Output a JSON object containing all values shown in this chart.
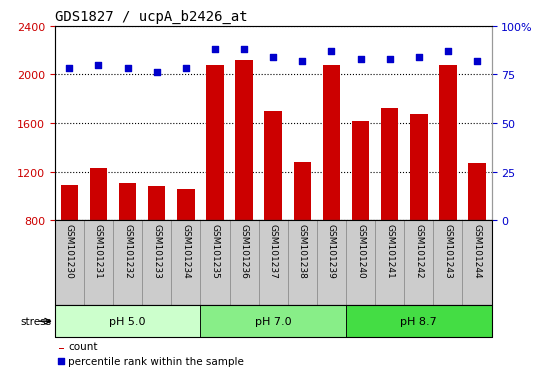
{
  "title": "GDS1827 / ucpA_b2426_at",
  "categories": [
    "GSM101230",
    "GSM101231",
    "GSM101232",
    "GSM101233",
    "GSM101234",
    "GSM101235",
    "GSM101236",
    "GSM101237",
    "GSM101238",
    "GSM101239",
    "GSM101240",
    "GSM101241",
    "GSM101242",
    "GSM101243",
    "GSM101244"
  ],
  "counts": [
    1090,
    1230,
    1105,
    1080,
    1055,
    2080,
    2120,
    1700,
    1280,
    2080,
    1620,
    1720,
    1670,
    2080,
    1270
  ],
  "percentiles": [
    78,
    80,
    78,
    76,
    78,
    88,
    88,
    84,
    82,
    87,
    83,
    83,
    84,
    87,
    82
  ],
  "ylim_left": [
    800,
    2400
  ],
  "ylim_right": [
    0,
    100
  ],
  "yticks_left": [
    800,
    1200,
    1600,
    2000,
    2400
  ],
  "yticks_right": [
    0,
    25,
    50,
    75,
    100
  ],
  "bar_color": "#cc0000",
  "dot_color": "#0000cc",
  "groups": [
    {
      "label": "pH 5.0",
      "start": 0,
      "end": 5,
      "color": "#ccffcc"
    },
    {
      "label": "pH 7.0",
      "start": 5,
      "end": 10,
      "color": "#88ee88"
    },
    {
      "label": "pH 8.7",
      "start": 10,
      "end": 15,
      "color": "#44dd44"
    }
  ],
  "stress_label": "stress",
  "legend_count_label": "count",
  "legend_pct_label": "percentile rank within the sample",
  "grid_color": "#000000",
  "ylabel_left_color": "#cc0000",
  "ylabel_right_color": "#0000cc",
  "tick_bg_color": "#cccccc",
  "tick_border_color": "#888888"
}
